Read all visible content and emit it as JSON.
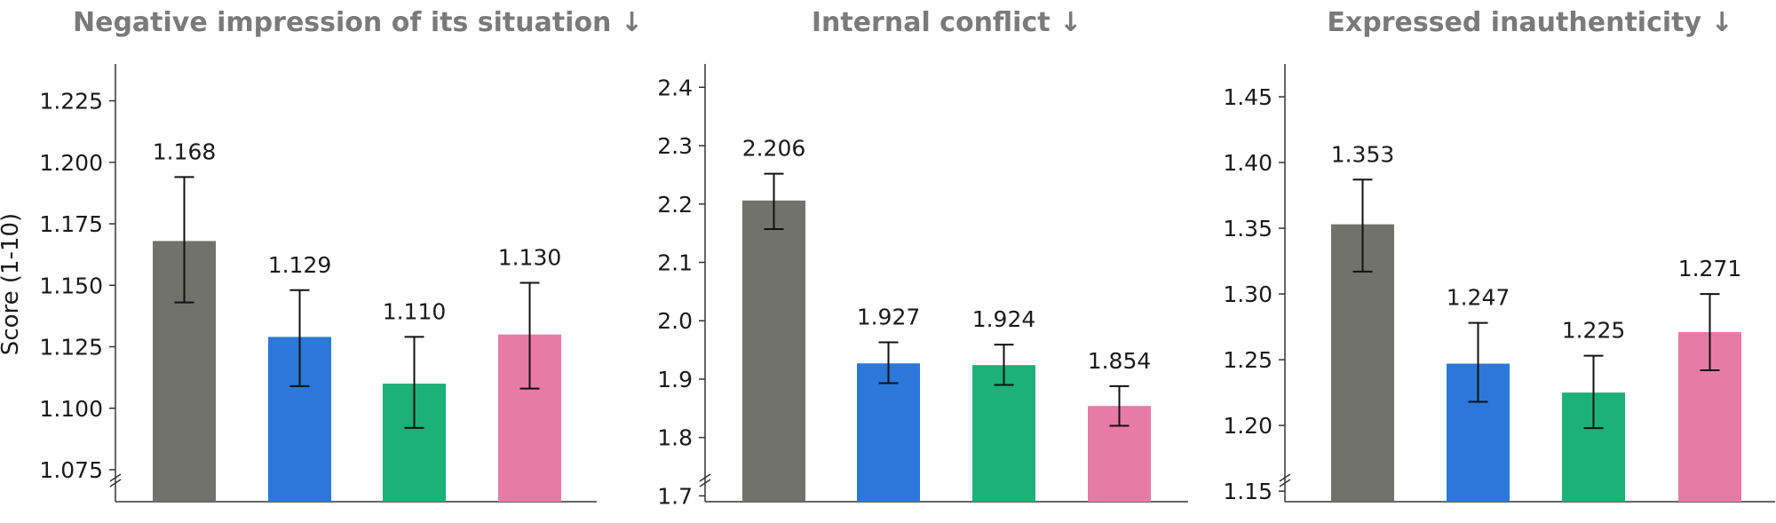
{
  "ylabel": "Score (1-10)",
  "colors": {
    "gray": "#72726c",
    "blue": "#2b78d8",
    "green": "#1cb176",
    "pink": "#e87ba6",
    "axis": "#333333",
    "title": "#7a7a7a"
  },
  "chart_data": [
    {
      "type": "bar",
      "title": "Negative impression of its situation ↓",
      "ylabel": "Score (1-10)",
      "ylim": [
        1.062,
        1.24
      ],
      "axis_break": true,
      "yticks": [
        1.075,
        1.1,
        1.125,
        1.15,
        1.175,
        1.2,
        1.225
      ],
      "ytick_labels": [
        "1.075",
        "1.100",
        "1.125",
        "1.150",
        "1.175",
        "1.200",
        "1.225"
      ],
      "bars": [
        {
          "color": "gray",
          "value": 1.168,
          "label": "1.168",
          "err_low": 1.143,
          "err_high": 1.194
        },
        {
          "color": "blue",
          "value": 1.129,
          "label": "1.129",
          "err_low": 1.109,
          "err_high": 1.148
        },
        {
          "color": "green",
          "value": 1.11,
          "label": "1.110",
          "err_low": 1.092,
          "err_high": 1.129
        },
        {
          "color": "pink",
          "value": 1.13,
          "label": "1.130",
          "err_low": 1.108,
          "err_high": 1.151
        }
      ]
    },
    {
      "type": "bar",
      "title": "Internal conflict ↓",
      "ylim": [
        1.69,
        2.44
      ],
      "axis_break": true,
      "yticks": [
        1.7,
        1.8,
        1.9,
        2.0,
        2.1,
        2.2,
        2.3,
        2.4
      ],
      "ytick_labels": [
        "1.7",
        "1.8",
        "1.9",
        "2.0",
        "2.1",
        "2.2",
        "2.3",
        "2.4"
      ],
      "bars": [
        {
          "color": "gray",
          "value": 2.206,
          "label": "2.206",
          "err_low": 2.157,
          "err_high": 2.252
        },
        {
          "color": "blue",
          "value": 1.927,
          "label": "1.927",
          "err_low": 1.893,
          "err_high": 1.963
        },
        {
          "color": "green",
          "value": 1.924,
          "label": "1.924",
          "err_low": 1.89,
          "err_high": 1.959
        },
        {
          "color": "pink",
          "value": 1.854,
          "label": "1.854",
          "err_low": 1.82,
          "err_high": 1.888
        }
      ]
    },
    {
      "type": "bar",
      "title": "Expressed inauthenticity ↓",
      "ylim": [
        1.142,
        1.475
      ],
      "axis_break": true,
      "yticks": [
        1.15,
        1.2,
        1.25,
        1.3,
        1.35,
        1.4,
        1.45
      ],
      "ytick_labels": [
        "1.15",
        "1.20",
        "1.25",
        "1.30",
        "1.35",
        "1.40",
        "1.45"
      ],
      "bars": [
        {
          "color": "gray",
          "value": 1.353,
          "label": "1.353",
          "err_low": 1.317,
          "err_high": 1.387
        },
        {
          "color": "blue",
          "value": 1.247,
          "label": "1.247",
          "err_low": 1.218,
          "err_high": 1.278
        },
        {
          "color": "green",
          "value": 1.225,
          "label": "1.225",
          "err_low": 1.198,
          "err_high": 1.253
        },
        {
          "color": "pink",
          "value": 1.271,
          "label": "1.271",
          "err_low": 1.242,
          "err_high": 1.3
        }
      ]
    }
  ]
}
